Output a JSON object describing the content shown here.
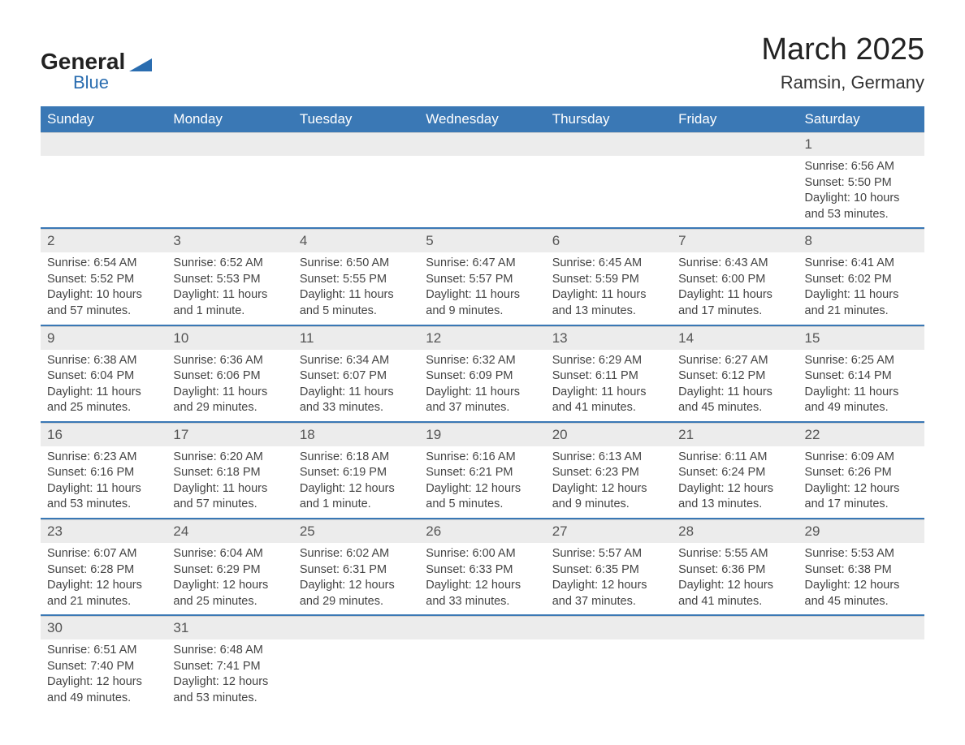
{
  "logo": {
    "brand1": "General",
    "brand2": "Blue",
    "accent_color": "#2a6db0"
  },
  "title": "March 2025",
  "subtitle": "Ramsin, Germany",
  "colors": {
    "header_bg": "#3a78b5",
    "header_text": "#ffffff",
    "daynum_bg": "#ececec",
    "daynum_text": "#555555",
    "body_text": "#444444",
    "row_divider": "#3a78b5",
    "page_bg": "#ffffff"
  },
  "typography": {
    "title_fontsize": 38,
    "subtitle_fontsize": 22,
    "header_fontsize": 17,
    "body_fontsize": 14.5
  },
  "layout": {
    "columns": 7,
    "rows": 6,
    "week_starts": "Sunday"
  },
  "weekdays": [
    "Sunday",
    "Monday",
    "Tuesday",
    "Wednesday",
    "Thursday",
    "Friday",
    "Saturday"
  ],
  "weeks": [
    [
      null,
      null,
      null,
      null,
      null,
      null,
      {
        "n": "1",
        "sunrise": "Sunrise: 6:56 AM",
        "sunset": "Sunset: 5:50 PM",
        "daylight": "Daylight: 10 hours and 53 minutes."
      }
    ],
    [
      {
        "n": "2",
        "sunrise": "Sunrise: 6:54 AM",
        "sunset": "Sunset: 5:52 PM",
        "daylight": "Daylight: 10 hours and 57 minutes."
      },
      {
        "n": "3",
        "sunrise": "Sunrise: 6:52 AM",
        "sunset": "Sunset: 5:53 PM",
        "daylight": "Daylight: 11 hours and 1 minute."
      },
      {
        "n": "4",
        "sunrise": "Sunrise: 6:50 AM",
        "sunset": "Sunset: 5:55 PM",
        "daylight": "Daylight: 11 hours and 5 minutes."
      },
      {
        "n": "5",
        "sunrise": "Sunrise: 6:47 AM",
        "sunset": "Sunset: 5:57 PM",
        "daylight": "Daylight: 11 hours and 9 minutes."
      },
      {
        "n": "6",
        "sunrise": "Sunrise: 6:45 AM",
        "sunset": "Sunset: 5:59 PM",
        "daylight": "Daylight: 11 hours and 13 minutes."
      },
      {
        "n": "7",
        "sunrise": "Sunrise: 6:43 AM",
        "sunset": "Sunset: 6:00 PM",
        "daylight": "Daylight: 11 hours and 17 minutes."
      },
      {
        "n": "8",
        "sunrise": "Sunrise: 6:41 AM",
        "sunset": "Sunset: 6:02 PM",
        "daylight": "Daylight: 11 hours and 21 minutes."
      }
    ],
    [
      {
        "n": "9",
        "sunrise": "Sunrise: 6:38 AM",
        "sunset": "Sunset: 6:04 PM",
        "daylight": "Daylight: 11 hours and 25 minutes."
      },
      {
        "n": "10",
        "sunrise": "Sunrise: 6:36 AM",
        "sunset": "Sunset: 6:06 PM",
        "daylight": "Daylight: 11 hours and 29 minutes."
      },
      {
        "n": "11",
        "sunrise": "Sunrise: 6:34 AM",
        "sunset": "Sunset: 6:07 PM",
        "daylight": "Daylight: 11 hours and 33 minutes."
      },
      {
        "n": "12",
        "sunrise": "Sunrise: 6:32 AM",
        "sunset": "Sunset: 6:09 PM",
        "daylight": "Daylight: 11 hours and 37 minutes."
      },
      {
        "n": "13",
        "sunrise": "Sunrise: 6:29 AM",
        "sunset": "Sunset: 6:11 PM",
        "daylight": "Daylight: 11 hours and 41 minutes."
      },
      {
        "n": "14",
        "sunrise": "Sunrise: 6:27 AM",
        "sunset": "Sunset: 6:12 PM",
        "daylight": "Daylight: 11 hours and 45 minutes."
      },
      {
        "n": "15",
        "sunrise": "Sunrise: 6:25 AM",
        "sunset": "Sunset: 6:14 PM",
        "daylight": "Daylight: 11 hours and 49 minutes."
      }
    ],
    [
      {
        "n": "16",
        "sunrise": "Sunrise: 6:23 AM",
        "sunset": "Sunset: 6:16 PM",
        "daylight": "Daylight: 11 hours and 53 minutes."
      },
      {
        "n": "17",
        "sunrise": "Sunrise: 6:20 AM",
        "sunset": "Sunset: 6:18 PM",
        "daylight": "Daylight: 11 hours and 57 minutes."
      },
      {
        "n": "18",
        "sunrise": "Sunrise: 6:18 AM",
        "sunset": "Sunset: 6:19 PM",
        "daylight": "Daylight: 12 hours and 1 minute."
      },
      {
        "n": "19",
        "sunrise": "Sunrise: 6:16 AM",
        "sunset": "Sunset: 6:21 PM",
        "daylight": "Daylight: 12 hours and 5 minutes."
      },
      {
        "n": "20",
        "sunrise": "Sunrise: 6:13 AM",
        "sunset": "Sunset: 6:23 PM",
        "daylight": "Daylight: 12 hours and 9 minutes."
      },
      {
        "n": "21",
        "sunrise": "Sunrise: 6:11 AM",
        "sunset": "Sunset: 6:24 PM",
        "daylight": "Daylight: 12 hours and 13 minutes."
      },
      {
        "n": "22",
        "sunrise": "Sunrise: 6:09 AM",
        "sunset": "Sunset: 6:26 PM",
        "daylight": "Daylight: 12 hours and 17 minutes."
      }
    ],
    [
      {
        "n": "23",
        "sunrise": "Sunrise: 6:07 AM",
        "sunset": "Sunset: 6:28 PM",
        "daylight": "Daylight: 12 hours and 21 minutes."
      },
      {
        "n": "24",
        "sunrise": "Sunrise: 6:04 AM",
        "sunset": "Sunset: 6:29 PM",
        "daylight": "Daylight: 12 hours and 25 minutes."
      },
      {
        "n": "25",
        "sunrise": "Sunrise: 6:02 AM",
        "sunset": "Sunset: 6:31 PM",
        "daylight": "Daylight: 12 hours and 29 minutes."
      },
      {
        "n": "26",
        "sunrise": "Sunrise: 6:00 AM",
        "sunset": "Sunset: 6:33 PM",
        "daylight": "Daylight: 12 hours and 33 minutes."
      },
      {
        "n": "27",
        "sunrise": "Sunrise: 5:57 AM",
        "sunset": "Sunset: 6:35 PM",
        "daylight": "Daylight: 12 hours and 37 minutes."
      },
      {
        "n": "28",
        "sunrise": "Sunrise: 5:55 AM",
        "sunset": "Sunset: 6:36 PM",
        "daylight": "Daylight: 12 hours and 41 minutes."
      },
      {
        "n": "29",
        "sunrise": "Sunrise: 5:53 AM",
        "sunset": "Sunset: 6:38 PM",
        "daylight": "Daylight: 12 hours and 45 minutes."
      }
    ],
    [
      {
        "n": "30",
        "sunrise": "Sunrise: 6:51 AM",
        "sunset": "Sunset: 7:40 PM",
        "daylight": "Daylight: 12 hours and 49 minutes."
      },
      {
        "n": "31",
        "sunrise": "Sunrise: 6:48 AM",
        "sunset": "Sunset: 7:41 PM",
        "daylight": "Daylight: 12 hours and 53 minutes."
      },
      null,
      null,
      null,
      null,
      null
    ]
  ]
}
